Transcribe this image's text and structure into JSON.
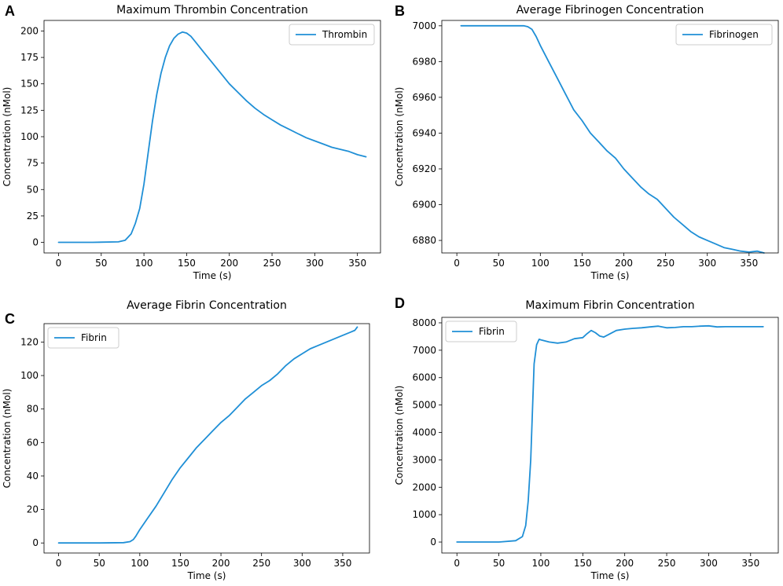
{
  "figure": {
    "line_color": "#1f8fd6",
    "panels": [
      "A",
      "B",
      "C",
      "D"
    ]
  },
  "chart_data": [
    {
      "type": "line",
      "panel": "A",
      "title": "Maximum Thrombin Concentration",
      "xlabel": "Time (s)",
      "ylabel": "Concentration (nMol)",
      "xlim": [
        -17,
        377
      ],
      "ylim": [
        -10,
        210
      ],
      "xticks": [
        0,
        50,
        100,
        150,
        200,
        250,
        300,
        350
      ],
      "yticks": [
        0,
        25,
        50,
        75,
        100,
        125,
        150,
        175,
        200
      ],
      "legend": "top-right",
      "grid": false,
      "series": [
        {
          "name": "Thrombin",
          "x": [
            0,
            40,
            70,
            78,
            85,
            90,
            95,
            100,
            105,
            110,
            115,
            120,
            125,
            130,
            135,
            140,
            145,
            150,
            155,
            160,
            170,
            180,
            190,
            200,
            210,
            220,
            230,
            240,
            250,
            260,
            270,
            280,
            290,
            300,
            310,
            320,
            330,
            340,
            350,
            360
          ],
          "y": [
            0,
            0,
            0.5,
            2,
            8,
            18,
            32,
            55,
            85,
            115,
            140,
            160,
            175,
            186,
            193,
            197,
            199,
            198,
            195,
            190,
            180,
            170,
            160,
            150,
            142,
            134,
            127,
            121,
            116,
            111,
            107,
            103,
            99,
            96,
            93,
            90,
            88,
            86,
            83,
            81
          ]
        }
      ]
    },
    {
      "type": "line",
      "panel": "B",
      "title": "Average Fibrinogen Concentration",
      "xlabel": "Time (s)",
      "ylabel": "Concentration (nMol)",
      "xlim": [
        -18,
        385
      ],
      "ylim": [
        6873,
        7003
      ],
      "xticks": [
        0,
        50,
        100,
        150,
        200,
        250,
        300,
        350
      ],
      "yticks": [
        6880,
        6900,
        6920,
        6940,
        6960,
        6980,
        7000
      ],
      "legend": "top-right",
      "grid": false,
      "series": [
        {
          "name": "Fibrinogen",
          "x": [
            5,
            50,
            80,
            85,
            90,
            95,
            100,
            110,
            120,
            130,
            140,
            150,
            160,
            170,
            180,
            190,
            200,
            210,
            220,
            230,
            240,
            250,
            260,
            270,
            280,
            290,
            300,
            310,
            320,
            330,
            340,
            350,
            360,
            368
          ],
          "y": [
            7000,
            7000,
            7000,
            6999.5,
            6998,
            6994,
            6989,
            6980,
            6971,
            6962,
            6953,
            6947,
            6940,
            6935,
            6930,
            6926,
            6920,
            6915,
            6910,
            6906,
            6903,
            6898,
            6893,
            6889,
            6885,
            6882,
            6880,
            6878,
            6876,
            6875,
            6874,
            6873.5,
            6874,
            6873
          ]
        }
      ]
    },
    {
      "type": "line",
      "panel": "C",
      "title": "Average Fibrin Concentration",
      "xlabel": "Time (s)",
      "ylabel": "Concentration (nMol)",
      "xlim": [
        -18,
        383
      ],
      "ylim": [
        -6,
        131
      ],
      "xticks": [
        0,
        50,
        100,
        150,
        200,
        250,
        300,
        350
      ],
      "yticks": [
        0,
        20,
        40,
        60,
        80,
        100,
        120
      ],
      "legend": "top-left",
      "grid": false,
      "series": [
        {
          "name": "Fibrin",
          "x": [
            0,
            50,
            80,
            88,
            92,
            95,
            100,
            110,
            120,
            130,
            140,
            150,
            160,
            170,
            180,
            190,
            200,
            210,
            220,
            230,
            240,
            250,
            260,
            270,
            280,
            290,
            300,
            310,
            320,
            330,
            340,
            350,
            360,
            365,
            368
          ],
          "y": [
            0,
            0,
            0.2,
            0.8,
            2,
            4,
            8,
            15,
            22,
            30,
            38,
            45,
            51,
            57,
            62,
            67,
            72,
            76,
            81,
            86,
            90,
            94,
            97,
            101,
            106,
            110,
            113,
            116,
            118,
            120,
            122,
            124,
            126,
            127,
            129
          ]
        }
      ]
    },
    {
      "type": "line",
      "panel": "D",
      "title": "Maximum Fibrin Concentration",
      "xlabel": "Time (s)",
      "ylabel": "Concentration (nMol)",
      "xlim": [
        -18,
        383
      ],
      "ylim": [
        -400,
        8200
      ],
      "xticks": [
        0,
        50,
        100,
        150,
        200,
        250,
        300,
        350
      ],
      "yticks": [
        0,
        1000,
        2000,
        3000,
        4000,
        5000,
        6000,
        7000,
        8000
      ],
      "legend": "top-left",
      "grid": false,
      "series": [
        {
          "name": "Fibrin",
          "x": [
            0,
            50,
            70,
            78,
            82,
            85,
            88,
            90,
            92,
            95,
            98,
            100,
            110,
            120,
            130,
            140,
            150,
            155,
            160,
            165,
            170,
            175,
            180,
            190,
            200,
            210,
            220,
            230,
            240,
            250,
            260,
            270,
            280,
            290,
            300,
            310,
            320,
            330,
            340,
            350,
            360,
            365
          ],
          "y": [
            0,
            0,
            50,
            200,
            600,
            1500,
            3000,
            4800,
            6500,
            7200,
            7400,
            7380,
            7300,
            7260,
            7300,
            7420,
            7460,
            7600,
            7720,
            7640,
            7520,
            7480,
            7560,
            7720,
            7770,
            7800,
            7820,
            7850,
            7880,
            7820,
            7830,
            7860,
            7860,
            7880,
            7890,
            7850,
            7860,
            7860,
            7860,
            7860,
            7860,
            7860
          ]
        }
      ]
    }
  ]
}
